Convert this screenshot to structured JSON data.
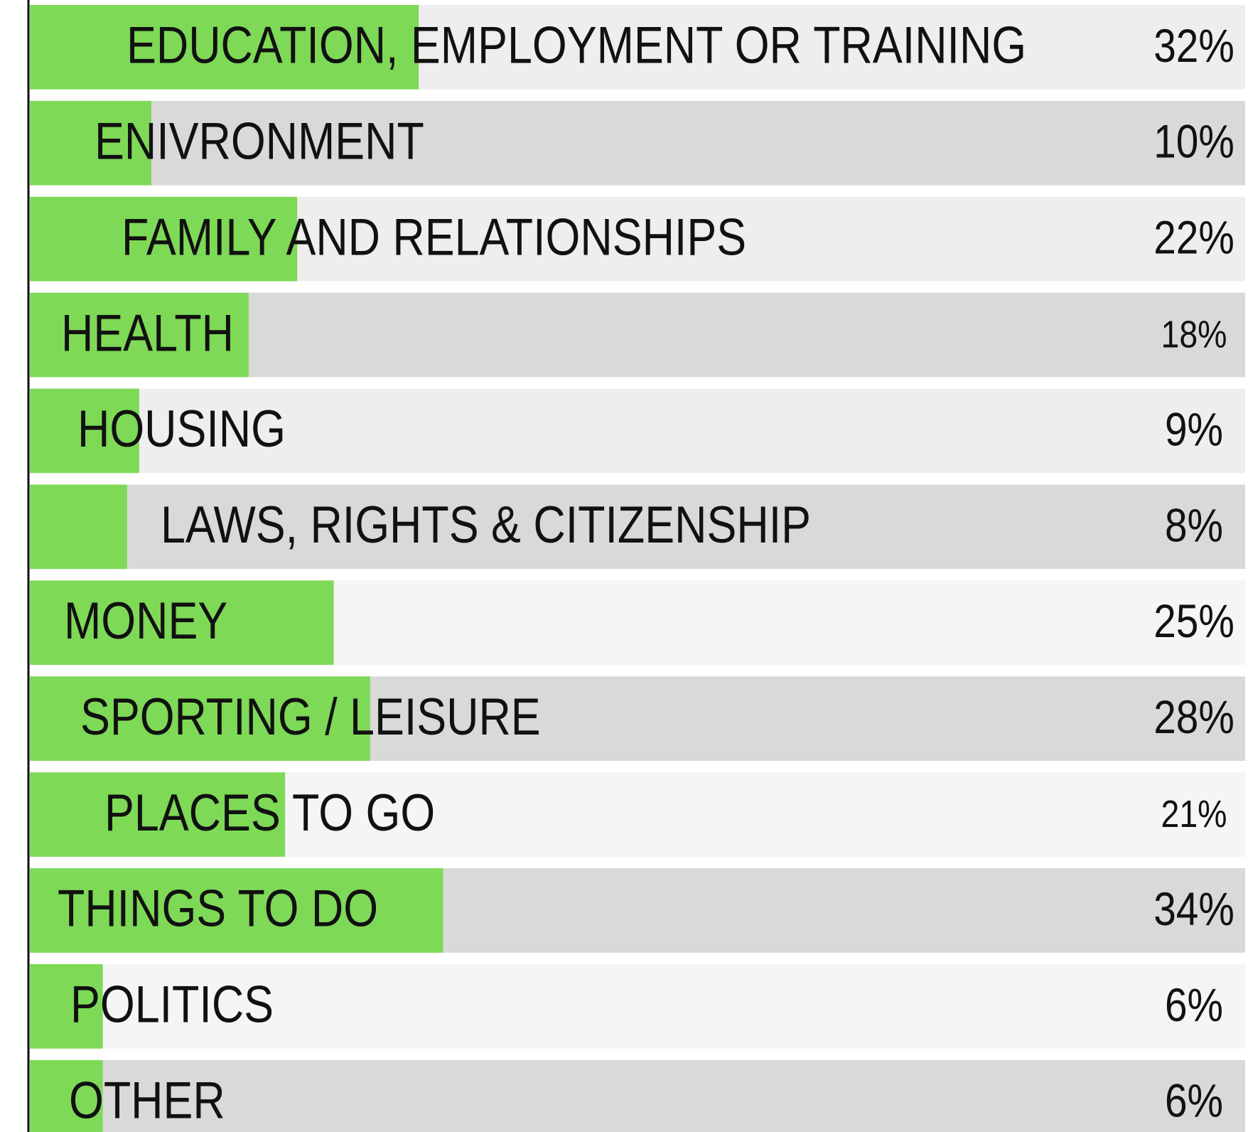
{
  "chart_data": {
    "type": "bar",
    "orientation": "horizontal",
    "categories": [
      "EDUCATION, EMPLOYMENT OR TRAINING",
      "ENIVRONMENT",
      "FAMILY AND RELATIONSHIPS",
      "HEALTH",
      "HOUSING",
      "LAWS, RIGHTS & CITIZENSHIP",
      "MONEY",
      "SPORTING / LEISURE",
      "PLACES TO GO",
      "THINGS TO DO",
      "POLITICS",
      "OTHER"
    ],
    "values": [
      32,
      10,
      22,
      18,
      9,
      8,
      25,
      28,
      21,
      34,
      6,
      6
    ],
    "value_labels": [
      "32%",
      "10%",
      "22%",
      "18%",
      "9%",
      "8%",
      "25%",
      "28%",
      "21%",
      "34%",
      "6%",
      "6%"
    ],
    "color": "#7ed957",
    "xlim": [
      0,
      100
    ]
  }
}
